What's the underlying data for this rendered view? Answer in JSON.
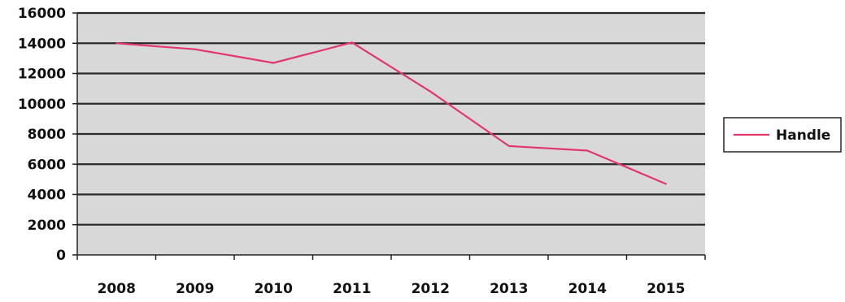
{
  "chart_data": {
    "type": "line",
    "categories": [
      "2008",
      "2009",
      "2010",
      "2011",
      "2012",
      "2013",
      "2014",
      "2015"
    ],
    "series": [
      {
        "name": "Handle",
        "values": [
          14000,
          13600,
          12700,
          14050,
          10800,
          7200,
          6900,
          4700
        ]
      }
    ],
    "ylim": [
      0,
      16000
    ],
    "yticks": [
      0,
      2000,
      4000,
      6000,
      8000,
      10000,
      12000,
      14000,
      16000
    ],
    "yticks_labels": [
      "0",
      "2000",
      "4000",
      "6000",
      "8000",
      "10000",
      "12000",
      "14000",
      "16000"
    ],
    "title": "",
    "xlabel": "",
    "ylabel": "",
    "grid": true,
    "legend_position": "right",
    "colors": {
      "plot_background": "#d8d8d8",
      "gridline": "#2a2a2a",
      "axis": "#222222",
      "line": "#e2376d",
      "legend_border": "#333333",
      "text": "#111111"
    }
  }
}
